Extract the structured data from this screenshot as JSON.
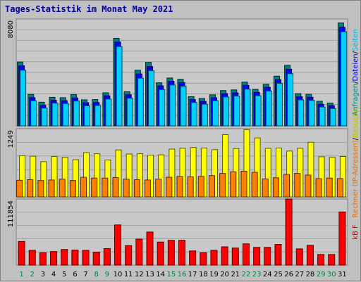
{
  "title": "Tages-Statistik im Monat May 2021",
  "colors": {
    "background": "#c0c0c0",
    "panel_bg": "#c8c8c8",
    "grid": "#a0a0a0",
    "axis_text": "#000000",
    "weekend_day": "#008040",
    "weekday": "#000000"
  },
  "chart_data": [
    {
      "type": "bar",
      "panel": "top",
      "ytick_label": "8080",
      "ylim": [
        0,
        8080
      ],
      "categories": [
        "1",
        "2",
        "3",
        "4",
        "5",
        "6",
        "7",
        "8",
        "9",
        "10",
        "11",
        "12",
        "13",
        "14",
        "15",
        "16",
        "17",
        "18",
        "19",
        "20",
        "21",
        "22",
        "23",
        "24",
        "25",
        "26",
        "27",
        "28",
        "29",
        "30",
        "31"
      ],
      "weekend_days": [
        "1",
        "2",
        "8",
        "9",
        "15",
        "16",
        "22",
        "23",
        "29",
        "30"
      ],
      "series": [
        {
          "name": "Anfragen",
          "color": "#008080",
          "values": [
            4830,
            2380,
            1790,
            2160,
            2130,
            2370,
            1970,
            1990,
            2500,
            6620,
            2580,
            4210,
            4800,
            3260,
            3620,
            3520,
            2210,
            2070,
            2350,
            2670,
            2720,
            3310,
            2760,
            3140,
            3760,
            4580,
            2440,
            2390,
            1860,
            1730,
            7780
          ]
        },
        {
          "name": "Dateien",
          "color": "#0000ff",
          "values": [
            4650,
            2240,
            1660,
            2040,
            2010,
            2220,
            1860,
            1870,
            2380,
            6450,
            2460,
            4030,
            4590,
            3130,
            3480,
            3380,
            2090,
            1960,
            2230,
            2540,
            2600,
            3170,
            2640,
            3020,
            3600,
            4390,
            2310,
            2270,
            1740,
            1630,
            7560
          ]
        },
        {
          "name": "Seiten",
          "color": "#00d0ff",
          "values": [
            4420,
            2110,
            1560,
            1930,
            1900,
            2090,
            1730,
            1750,
            2240,
            6210,
            2310,
            3820,
            4380,
            2960,
            3300,
            3210,
            1990,
            1850,
            2110,
            2400,
            2470,
            2990,
            2500,
            2850,
            3430,
            4160,
            2180,
            2140,
            1640,
            1520,
            7330
          ]
        }
      ],
      "side_labels": [
        {
          "text": "Anfragen",
          "color": "#008080"
        },
        {
          "text": "Dateien",
          "color": "#0000ff"
        },
        {
          "text": "Seiten",
          "color": "#00b0e0"
        }
      ],
      "side_sep": "/"
    },
    {
      "type": "bar",
      "panel": "middle",
      "ytick_label": "1249",
      "ylim": [
        0,
        1249
      ],
      "categories": [
        "1",
        "2",
        "3",
        "4",
        "5",
        "6",
        "7",
        "8",
        "9",
        "10",
        "11",
        "12",
        "13",
        "14",
        "15",
        "16",
        "17",
        "18",
        "19",
        "20",
        "21",
        "22",
        "23",
        "24",
        "25",
        "26",
        "27",
        "28",
        "29",
        "30",
        "31"
      ],
      "series": [
        {
          "name": "Besuche",
          "color": "#ffff00",
          "values": [
            755,
            745,
            645,
            740,
            725,
            680,
            810,
            790,
            675,
            860,
            785,
            790,
            765,
            770,
            875,
            890,
            905,
            895,
            865,
            1140,
            885,
            1230,
            1080,
            890,
            895,
            840,
            890,
            1000,
            735,
            725,
            740
          ]
        },
        {
          "name": "Rechner (IP-Adressen)",
          "color": "#ff8000",
          "values": [
            305,
            315,
            300,
            310,
            325,
            300,
            360,
            345,
            345,
            355,
            325,
            315,
            310,
            325,
            360,
            375,
            370,
            375,
            390,
            430,
            460,
            470,
            450,
            330,
            350,
            410,
            430,
            400,
            335,
            345,
            335
          ]
        }
      ],
      "side_labels": [
        {
          "text": "Rechner (IP-Adressen)",
          "color": "#e07000"
        },
        {
          "text": "Besuche",
          "color": "#c0c000"
        }
      ],
      "side_sep": "/"
    },
    {
      "type": "bar",
      "panel": "bottom",
      "ytick_label": "111854",
      "ylim": [
        0,
        111854
      ],
      "categories": [
        "1",
        "2",
        "3",
        "4",
        "5",
        "6",
        "7",
        "8",
        "9",
        "10",
        "11",
        "12",
        "13",
        "14",
        "15",
        "16",
        "17",
        "18",
        "19",
        "20",
        "21",
        "22",
        "23",
        "24",
        "25",
        "26",
        "27",
        "28",
        "29",
        "30",
        "31"
      ],
      "series": [
        {
          "name": "kB F",
          "color": "#ff0000",
          "values": [
            40000,
            25000,
            21000,
            23000,
            26500,
            25500,
            25000,
            22000,
            28000,
            68000,
            33000,
            44000,
            56000,
            39000,
            42000,
            42000,
            24000,
            21000,
            25000,
            31000,
            29000,
            36000,
            30000,
            30000,
            35000,
            113000,
            27500,
            33500,
            18000,
            18000,
            90000
          ]
        }
      ],
      "side_labels": [
        {
          "text": "kB F",
          "color": "#e00000"
        }
      ],
      "side_sep": "/"
    }
  ]
}
